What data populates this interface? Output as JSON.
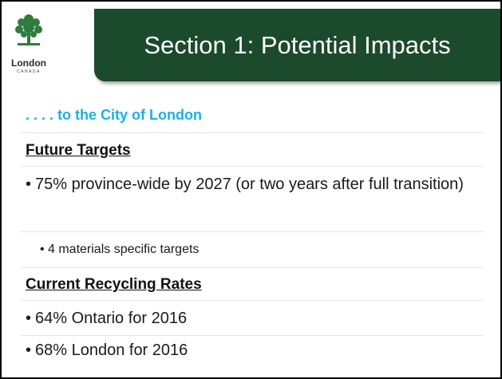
{
  "header": {
    "title": "Section 1: Potential Impacts"
  },
  "logo": {
    "name": "London",
    "country": "CANADA"
  },
  "subtitle": ". . . . to the City of London",
  "sections": [
    {
      "heading": "Future Targets",
      "bullets": [
        {
          "text": "75% province-wide by 2027 (or two years after full transition)",
          "sub": [
            "4 materials specific targets"
          ]
        }
      ]
    },
    {
      "heading": "Current Recycling Rates",
      "bullets": [
        {
          "text": "64% Ontario for 2016"
        },
        {
          "text": "68% London for 2016"
        }
      ]
    }
  ]
}
